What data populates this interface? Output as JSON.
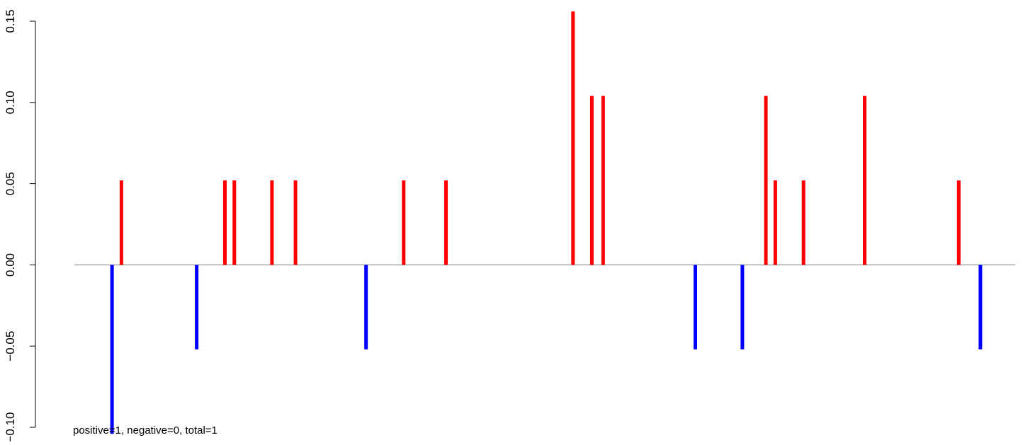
{
  "chart_data": {
    "type": "bar",
    "title": "",
    "xlabel": "",
    "ylabel": "",
    "ylim": [
      -0.1,
      0.15
    ],
    "y_ticks": [
      -0.1,
      -0.05,
      0.0,
      0.05,
      0.1,
      0.15
    ],
    "y_tick_labels": [
      "−0.10",
      "−0.05",
      "0.00",
      "0.05",
      "0.10",
      "0.15"
    ],
    "baseline": 0,
    "grid": false,
    "legend": "none",
    "x_axis_shown": false,
    "xlim": [
      0,
      100
    ],
    "colors": {
      "positive": "#ff0000",
      "negative": "#0000ff",
      "baseline": "#808080",
      "axis": "#000000"
    },
    "x": [
      4,
      5,
      13,
      16,
      17,
      21,
      23.5,
      31,
      35,
      39.5,
      53,
      55,
      56.2,
      66,
      71,
      73.5,
      74.5,
      77.5,
      84,
      94,
      96.3
    ],
    "values": [
      -0.104,
      0.052,
      -0.052,
      0.052,
      0.052,
      0.052,
      0.052,
      -0.052,
      0.052,
      0.052,
      0.156,
      0.104,
      0.104,
      -0.052,
      -0.052,
      0.104,
      0.052,
      0.052,
      0.104,
      0.052,
      -0.052
    ],
    "annotation": "positive=1, negative=0, total=1"
  }
}
